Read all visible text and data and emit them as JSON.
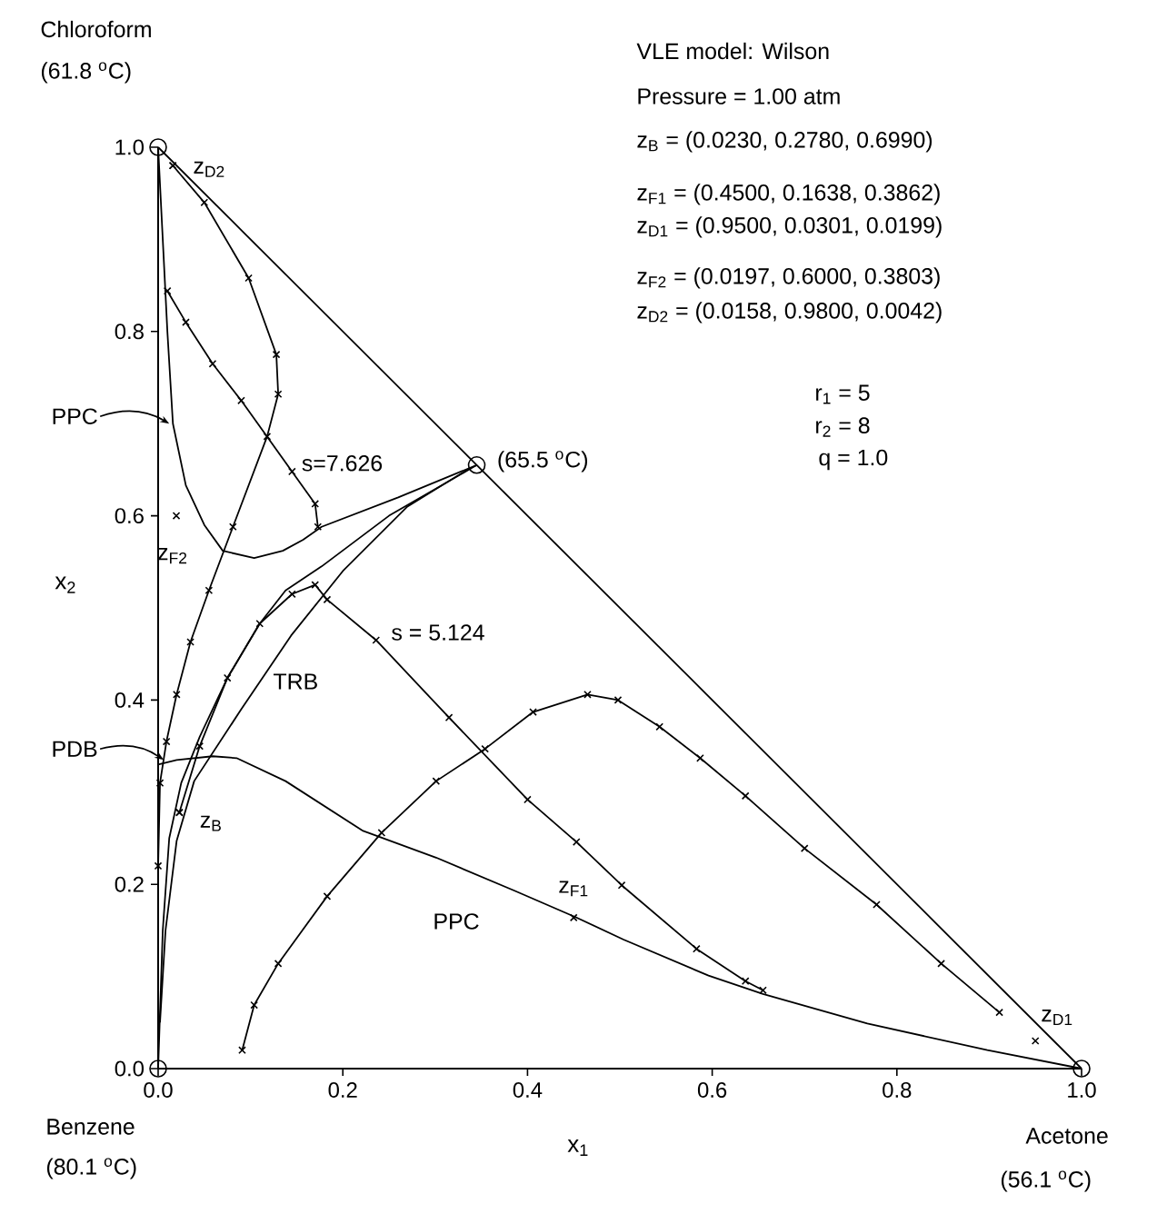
{
  "chart_data": {
    "type": "line",
    "xlabel": "x$_{1}$",
    "ylabel": "x$_{2}$",
    "xlim": [
      0,
      1
    ],
    "ylim": [
      0,
      1
    ],
    "xticks": [
      {
        "value": 0,
        "label": "0.0"
      },
      {
        "value": 0.2,
        "label": "0.2"
      },
      {
        "value": 0.4,
        "label": "0.4"
      },
      {
        "value": 0.6,
        "label": "0.6"
      },
      {
        "value": 0.8,
        "label": "0.8"
      },
      {
        "value": 1,
        "label": "1.0"
      }
    ],
    "yticks": [
      {
        "value": 0,
        "label": "0.0"
      },
      {
        "value": 0.2,
        "label": "0.2"
      },
      {
        "value": 0.4,
        "label": "0.4"
      },
      {
        "value": 0.6,
        "label": "0.6"
      },
      {
        "value": 0.8,
        "label": "0.8"
      },
      {
        "value": 1,
        "label": "1.0"
      }
    ],
    "marker": "none",
    "line_style": "solid",
    "series": [
      {
        "color": "#000000",
        "x": [
          0,
          1
        ],
        "values": [
          1,
          0
        ]
      },
      {
        "color": "#000000",
        "x": [
          0.0,
          0.005,
          0.01,
          0.016,
          0.03,
          0.05,
          0.07,
          0.104,
          0.135,
          0.157,
          0.177,
          0.26,
          0.345
        ],
        "values": [
          1.0,
          0.9,
          0.8,
          0.7,
          0.633,
          0.59,
          0.562,
          0.554,
          0.562,
          0.574,
          0.588,
          0.62,
          0.655
        ]
      },
      {
        "color": "#000000",
        "marker": "cross",
        "x": [
          0.016,
          0.05,
          0.098,
          0.128,
          0.13,
          0.118,
          0.081,
          0.055,
          0.035,
          0.02,
          0.009,
          0.002,
          0.0
        ],
        "values": [
          0.98,
          0.94,
          0.858,
          0.775,
          0.732,
          0.686,
          0.588,
          0.519,
          0.463,
          0.406,
          0.355,
          0.31,
          0.22
        ]
      },
      {
        "color": "#000000",
        "marker": "cross",
        "x": [
          0.01,
          0.03,
          0.059,
          0.09,
          0.145,
          0.17,
          0.173
        ],
        "values": [
          0.844,
          0.81,
          0.765,
          0.725,
          0.648,
          0.613,
          0.588
        ]
      },
      {
        "color": "#000000",
        "x": [
          0,
          0.005,
          0.012,
          0.025,
          0.045,
          0.075,
          0.11,
          0.138,
          0.177,
          0.25,
          0.345
        ],
        "values": [
          0,
          0.15,
          0.25,
          0.31,
          0.36,
          0.424,
          0.483,
          0.519,
          0.545,
          0.6,
          0.655
        ]
      },
      {
        "color": "#000000",
        "x": [
          0.002,
          0.008,
          0.02,
          0.039,
          0.09,
          0.144,
          0.2,
          0.27,
          0.335
        ],
        "values": [
          0.05,
          0.15,
          0.247,
          0.312,
          0.39,
          0.47,
          0.54,
          0.61,
          0.65
        ]
      },
      {
        "color": "#000000",
        "marker": "cross",
        "x": [
          0.023,
          0.045,
          0.075,
          0.11,
          0.145,
          0.17,
          0.183,
          0.236,
          0.315,
          0.4,
          0.453,
          0.502,
          0.583,
          0.636,
          0.655
        ],
        "values": [
          0.278,
          0.35,
          0.424,
          0.483,
          0.515,
          0.525,
          0.509,
          0.465,
          0.381,
          0.292,
          0.246,
          0.199,
          0.13,
          0.095,
          0.085
        ]
      },
      {
        "color": "#000000",
        "marker": "cross",
        "x": [
          0.911,
          0.848,
          0.778,
          0.7,
          0.636,
          0.587,
          0.543,
          0.498,
          0.465,
          0.406,
          0.354,
          0.301,
          0.242,
          0.183,
          0.13,
          0.104,
          0.091
        ],
        "values": [
          0.061,
          0.114,
          0.178,
          0.239,
          0.296,
          0.337,
          0.371,
          0.4,
          0.406,
          0.387,
          0.347,
          0.312,
          0.256,
          0.187,
          0.114,
          0.069,
          0.02
        ]
      },
      {
        "color": "#000000",
        "x": [
          0,
          0.02,
          0.059,
          0.085,
          0.138,
          0.222,
          0.301,
          0.386,
          0.453,
          0.504,
          0.596,
          0.655,
          0.768,
          0.898,
          1.0
        ],
        "values": [
          0.33,
          0.335,
          0.339,
          0.337,
          0.312,
          0.258,
          0.229,
          0.193,
          0.164,
          0.14,
          0.101,
          0.081,
          0.049,
          0.02,
          0.0
        ]
      },
      {
        "type": "scatter",
        "color": "#000000",
        "marker": "circle",
        "x": [
          0,
          0,
          1,
          0.345
        ],
        "values": [
          1,
          0,
          0,
          0.655
        ]
      },
      {
        "type": "scatter",
        "color": "#000000",
        "marker": "cross",
        "x": [
          0.45,
          0.0197
        ],
        "values": [
          0.1638,
          0.6
        ]
      },
      {
        "type": "scatter",
        "color": "#000000",
        "marker": "cross",
        "x": [
          0.023,
          0.95,
          0.0158
        ],
        "values": [
          0.278,
          0.0301,
          0.98
        ]
      }
    ],
    "annotations": [
      "VLE model:  Wilson",
      "Pressure = 1.00 atm",
      "z$_{B}$ = (0.0230, 0.2780, 0.6990)",
      "z$_{F1}$ = (0.4500, 0.1638, 0.3862)",
      "z$_{D1}$ = (0.9500, 0.0301, 0.0199)",
      "z$_{F2}$ = (0.0197, 0.6000, 0.3803)",
      "z$_{D2}$ = (0.0158, 0.9800, 0.0042)",
      "r$_{1}$ =  5",
      "r$_{2}$ =  8",
      "q = 1.0",
      "Chloroform",
      "(61.8 $^{o}$C)",
      "Benzene",
      "(80.1 $^{o}$C)",
      "Acetone",
      "(56.1 $^{o}$C)",
      {
        "text": "(65.5 $^{o}$C)",
        "x": 0.345,
        "y": 0.655
      },
      {
        "text": "z$_{D2}$",
        "x": 0.0158,
        "y": 0.98
      },
      {
        "text": "z$_{F2}$",
        "x": 0.0197,
        "y": 0.6
      },
      {
        "text": "z$_{B}$",
        "x": 0.023,
        "y": 0.278
      },
      {
        "text": "z$_{F1}$",
        "x": 0.45,
        "y": 0.1638
      },
      {
        "text": "z$_{D1}$",
        "x": 0.95,
        "y": 0.0301
      },
      {
        "text": "s=7.626",
        "x": 0.153,
        "y": 0.657
      },
      "s = 5.124",
      "TRB",
      "PPC",
      {
        "text": "PPC",
        "x": 0.012,
        "y": 0.7
      },
      {
        "text": "PDB",
        "x": 0.006,
        "y": 0.335
      }
    ]
  }
}
